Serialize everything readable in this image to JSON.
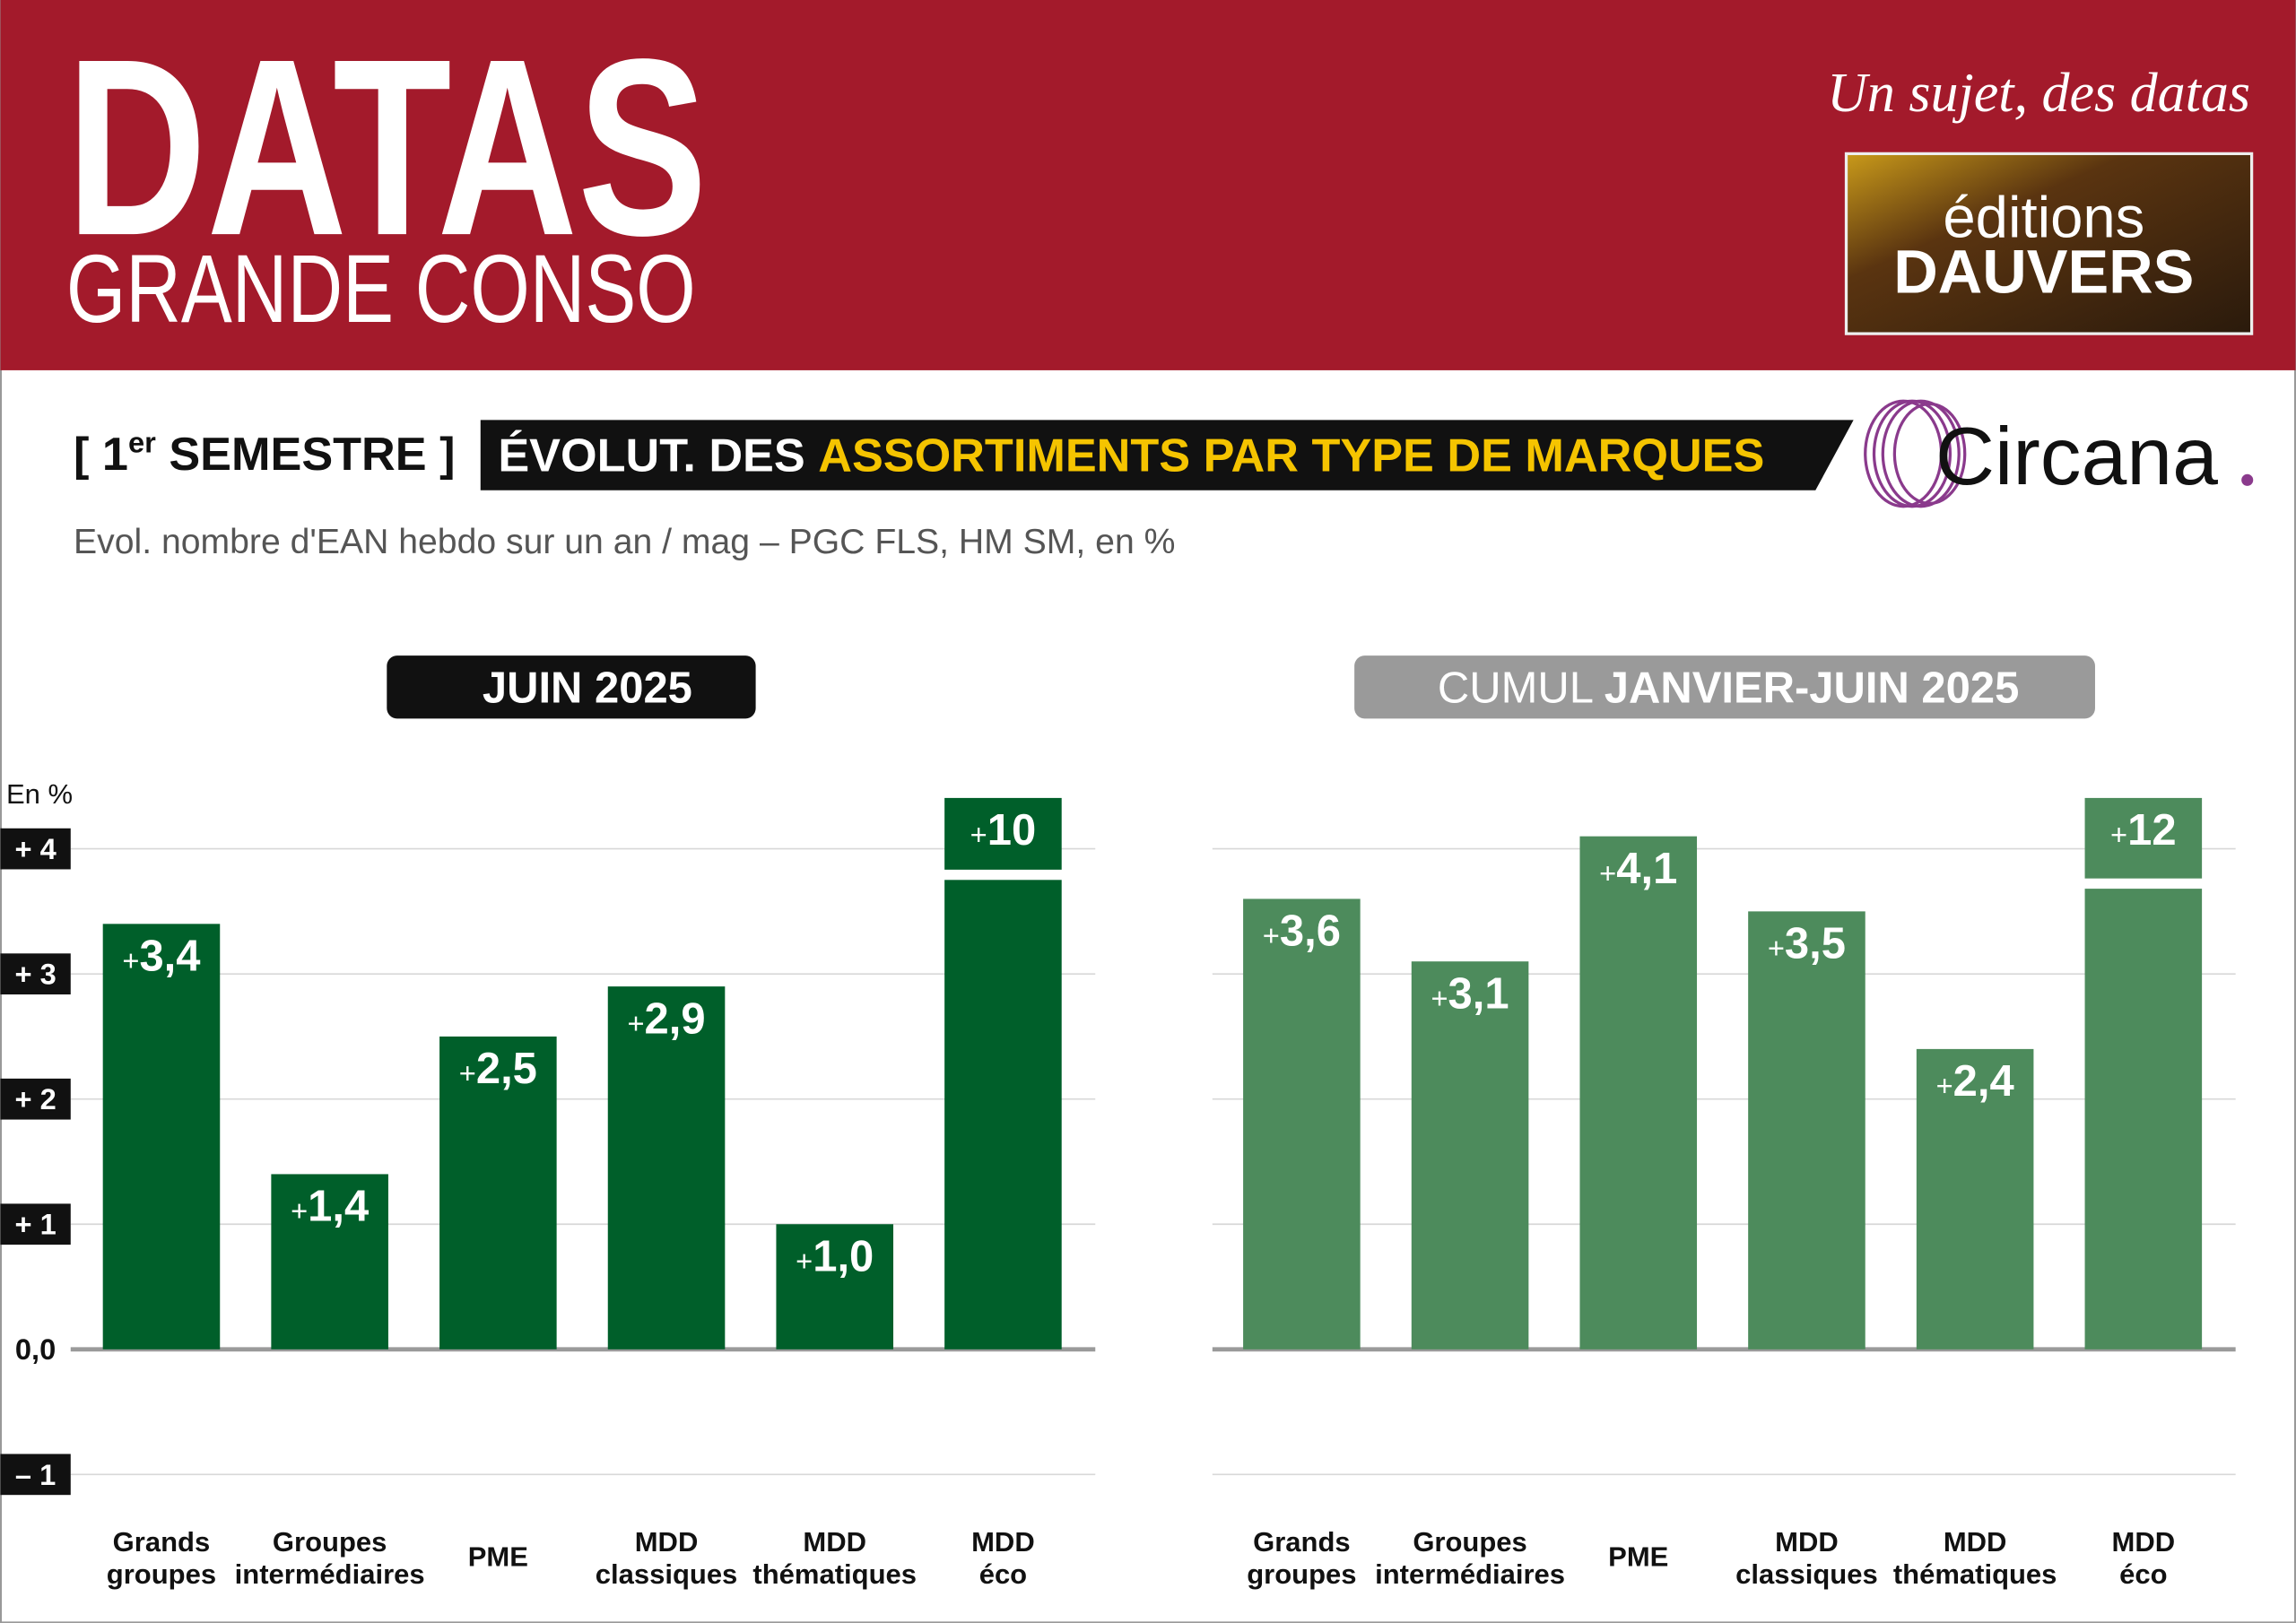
{
  "header": {
    "title": "DATAS",
    "subtitle": "GRANDE CONSO",
    "tagline": "Un sujet, des datas",
    "logo": [
      "éditions",
      "DAUVERS"
    ]
  },
  "banner": {
    "period_open": "[ 1",
    "period_sup": "er",
    "period_close": " SEMESTRE ]",
    "title_start": "ÉVOLUT. DES ",
    "title_highlight": "ASSORTIMENTS PAR TYPE DE MARQUES",
    "brand": "Circana",
    "subtitle": "Evol. nombre d'EAN hebdo sur un an / mag – PGC FLS, HM SM, en %"
  },
  "chart_data": [
    {
      "type": "bar",
      "title": "JUIN 2025",
      "y_label": "En %",
      "color": "#005f2a",
      "tick_labels": true,
      "categories": [
        "Grands groupes",
        "Groupes intermédiaires",
        "PME",
        "MDD classiques",
        "MDD thématiques",
        "MDD éco"
      ],
      "values": [
        3.4,
        1.4,
        2.5,
        2.9,
        1.0,
        10
      ],
      "value_labels": [
        "+3,4",
        "+1,4",
        "+2,5",
        "+2,9",
        "+1,0",
        "+10"
      ],
      "ylim": [
        -1,
        4.5
      ],
      "yticks": [
        {
          "value": 4,
          "label": "+ 4"
        },
        {
          "value": 3,
          "label": "+ 3"
        },
        {
          "value": 2,
          "label": "+ 2"
        },
        {
          "value": 1,
          "label": "+ 1"
        },
        {
          "value": 0,
          "label": "0,0"
        },
        {
          "value": -1,
          "label": "– 1"
        }
      ],
      "grid": true
    },
    {
      "type": "bar",
      "title": "CUMUL JANVIER-JUIN 2025",
      "color": "#4d8b5c",
      "tick_labels": false,
      "categories": [
        "Grands groupes",
        "Groupes intermédiaires",
        "PME",
        "MDD classiques",
        "MDD thématiques",
        "MDD éco"
      ],
      "values": [
        3.6,
        3.1,
        4.1,
        3.5,
        2.4,
        12
      ],
      "value_labels": [
        "+3,6",
        "+3,1",
        "+4,1",
        "+3,5",
        "+2,4",
        "+12"
      ],
      "ylim": [
        -1,
        4.5
      ],
      "yticks": [
        {
          "value": 4,
          "label": "+ 4"
        },
        {
          "value": 3,
          "label": "+ 3"
        },
        {
          "value": 2,
          "label": "+ 2"
        },
        {
          "value": 1,
          "label": "+ 1"
        },
        {
          "value": 0,
          "label": "0,0"
        },
        {
          "value": -1,
          "label": "– 1"
        }
      ],
      "grid": true
    }
  ]
}
